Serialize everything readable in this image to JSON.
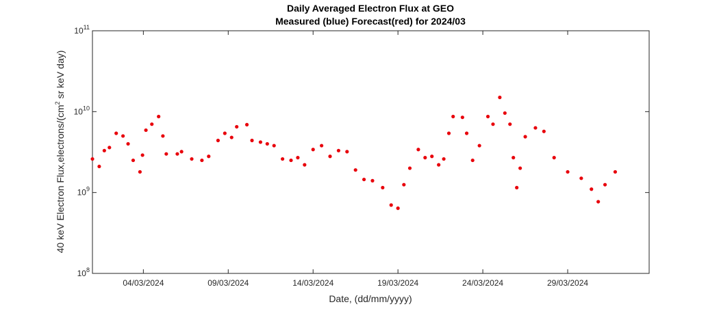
{
  "chart_data": {
    "type": "scatter",
    "title": "Daily Averaged Electron Flux at GEO",
    "subtitle": "Measured (blue) Forecast(red) for 2024/03",
    "xlabel": "Date, (dd/mm/yyyy)",
    "ylabel": "40 keV Electron Flux,electrons/(cm^2 sr keV day)",
    "log_y": true,
    "xlim": [
      1,
      33.8
    ],
    "xticks": [
      {
        "value": 4,
        "label": "04/03/2024"
      },
      {
        "value": 9,
        "label": "09/03/2024"
      },
      {
        "value": 14,
        "label": "14/03/2024"
      },
      {
        "value": 19,
        "label": "19/03/2024"
      },
      {
        "value": 24,
        "label": "24/03/2024"
      },
      {
        "value": 29,
        "label": "29/03/2024"
      }
    ],
    "ylim": [
      100000000,
      100000000000
    ],
    "yticks": [
      {
        "value": 100000000,
        "label": "10^8"
      },
      {
        "value": 1000000000,
        "label": "10^9"
      },
      {
        "value": 10000000000,
        "label": "10^10"
      },
      {
        "value": 100000000000,
        "label": "10^11"
      }
    ],
    "series": [
      {
        "name": "Forecast",
        "color": "#e8000b",
        "x": [
          1.0,
          1.4,
          1.7,
          2.0,
          2.4,
          2.8,
          3.1,
          3.4,
          3.8,
          3.95,
          4.15,
          4.5,
          4.9,
          5.15,
          5.35,
          6.0,
          6.25,
          6.85,
          7.45,
          7.85,
          8.4,
          8.8,
          9.2,
          9.5,
          10.1,
          10.4,
          10.9,
          11.3,
          11.7,
          12.2,
          12.7,
          13.1,
          13.5,
          14.0,
          14.5,
          15.0,
          15.5,
          16.0,
          16.5,
          17.0,
          17.5,
          18.1,
          18.6,
          19.0,
          19.35,
          19.7,
          20.2,
          20.6,
          21.0,
          21.4,
          21.7,
          22.0,
          22.25,
          22.8,
          23.05,
          23.4,
          23.8,
          24.3,
          24.6,
          25.0,
          25.3,
          25.6,
          25.8,
          26.0,
          26.2,
          26.5,
          27.1,
          27.6,
          28.2,
          29.0,
          29.8,
          30.4,
          30.8,
          31.2,
          31.8
        ],
        "values": [
          2600000000,
          2100000000,
          3300000000,
          3600000000,
          5400000000,
          5000000000,
          4000000000,
          2500000000,
          1800000000,
          2900000000,
          5900000000,
          7000000000,
          8700000000,
          5000000000,
          3000000000,
          3000000000,
          3200000000,
          2600000000,
          2500000000,
          2800000000,
          4400000000,
          5400000000,
          4800000000,
          6500000000,
          6900000000,
          4400000000,
          4200000000,
          4000000000,
          3800000000,
          2600000000,
          2500000000,
          2700000000,
          2200000000,
          3400000000,
          3800000000,
          2800000000,
          3300000000,
          3200000000,
          1900000000,
          1450000000,
          1400000000,
          1150000000,
          700000000,
          640000000,
          1250000000,
          2000000000,
          3400000000,
          2700000000,
          2800000000,
          2200000000,
          2600000000,
          5400000000,
          8700000000,
          8500000000,
          5400000000,
          2500000000,
          3800000000,
          8700000000,
          7000000000,
          15000000000,
          9600000000,
          7000000000,
          2700000000,
          1150000000,
          2000000000,
          4900000000,
          6300000000,
          5700000000,
          2700000000,
          1800000000,
          1500000000,
          1100000000,
          770000000,
          1250000000,
          1800000000
        ]
      }
    ]
  }
}
